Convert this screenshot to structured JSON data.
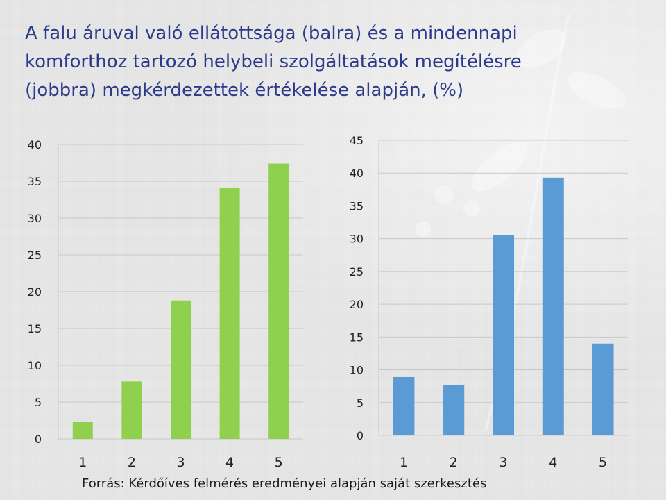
{
  "title": "A falu áruval való ellátottsága (balra) és a mindennapi komforthoz tartozó helybeli szolgáltatások megítélésre (jobbra) megkérdezettek értékelése alapján, (%)",
  "source": "Forrás: Kérdőíves felmérés eredményei alapján saját szerkesztés",
  "colors": {
    "left": "#8fd14f",
    "right": "#5b9bd5",
    "grid": "#c8c8c8",
    "title": "#2b3a8a"
  },
  "chart_data": [
    {
      "type": "bar",
      "name": "left",
      "categories": [
        "1",
        "2",
        "3",
        "4",
        "5"
      ],
      "values": [
        2.3,
        7.8,
        18.8,
        34.1,
        37.4
      ],
      "yticks": [
        "0",
        "5",
        "10",
        "15",
        "20",
        "25",
        "30",
        "35",
        "40"
      ],
      "ylim": [
        0,
        40
      ],
      "title": "",
      "xlabel": "",
      "ylabel": ""
    },
    {
      "type": "bar",
      "name": "right",
      "categories": [
        "1",
        "2",
        "3",
        "4",
        "5"
      ],
      "values": [
        8.9,
        7.7,
        30.5,
        39.3,
        14.0
      ],
      "yticks": [
        "0",
        "5",
        "10",
        "15",
        "20",
        "25",
        "30",
        "35",
        "40",
        "45"
      ],
      "ylim": [
        0,
        45
      ],
      "title": "",
      "xlabel": "",
      "ylabel": ""
    }
  ]
}
